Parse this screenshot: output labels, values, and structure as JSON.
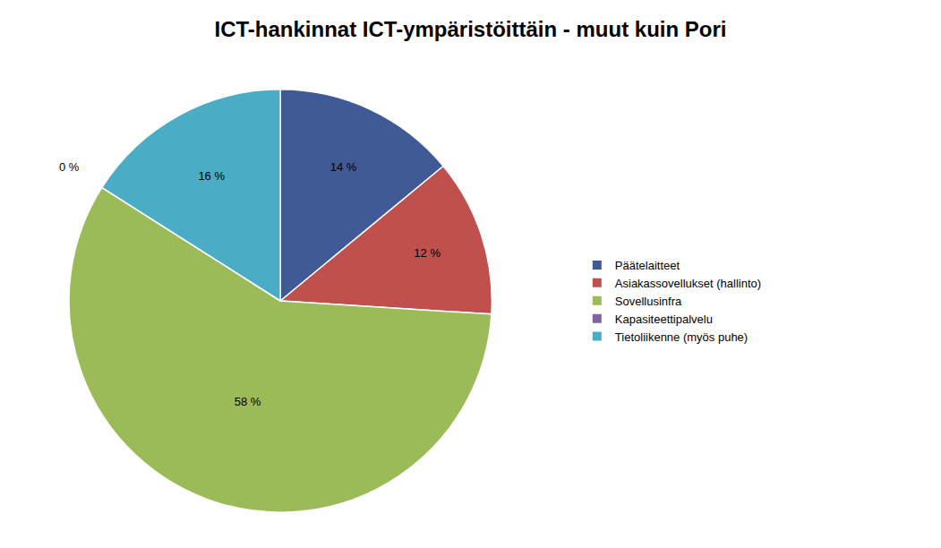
{
  "chart_data": {
    "type": "pie",
    "title": "ICT-hankinnat ICT-ympäristöittäin - muut kuin Pori",
    "categories": [
      "Päätelaitteet",
      "Asiakassovellukset (hallinto)",
      "Sovellusinfra",
      "Kapasiteettipalvelu",
      "Tietoliikenne (myös puhe)"
    ],
    "values": [
      14,
      12,
      58,
      0,
      16
    ],
    "value_labels": [
      "14 %",
      "12 %",
      "58 %",
      "0 %",
      "16 %"
    ],
    "colors": [
      "#3f5a96",
      "#c0504d",
      "#9bbb59",
      "#8064a2",
      "#4bacc6"
    ],
    "data_labels": true,
    "legend": "right"
  }
}
